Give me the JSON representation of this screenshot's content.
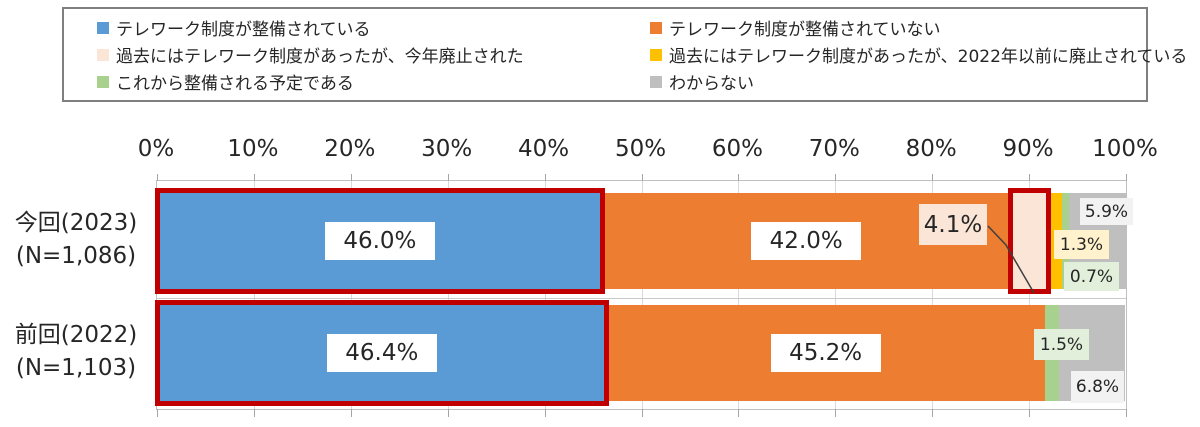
{
  "highlight_color": "#C00000",
  "chart_data": {
    "type": "bar",
    "orientation": "horizontal",
    "stacked": true,
    "legend_position": "top",
    "grid": true,
    "xlim": [
      0,
      100
    ],
    "x_ticks": [
      "0%",
      "10%",
      "20%",
      "30%",
      "40%",
      "50%",
      "60%",
      "70%",
      "80%",
      "90%",
      "100%"
    ],
    "categories": [
      {
        "label": "今回(2023)",
        "n": "(N=1,086)"
      },
      {
        "label": "前回(2022)",
        "n": "(N=1,103)"
      }
    ],
    "series": [
      {
        "name": "テレワーク制度が整備されている",
        "color": "#5B9BD5",
        "label_bg": "#FFFFFF",
        "values": [
          46.0,
          46.4
        ]
      },
      {
        "name": "テレワーク制度が整備されていない",
        "color": "#ED7D31",
        "label_bg": "#FFFFFF",
        "values": [
          42.0,
          45.2
        ]
      },
      {
        "name": "過去にはテレワーク制度があったが、今年廃止された",
        "color": "#FBE5D6",
        "label_bg": "#FBE5D6",
        "values": [
          4.1,
          0
        ]
      },
      {
        "name": "過去にはテレワーク制度があったが、2022年以前に廃止されている",
        "color": "#FFC000",
        "label_bg": "#FFF2CC",
        "values": [
          1.3,
          0
        ]
      },
      {
        "name": "これから整備される予定である",
        "color": "#A9D18E",
        "label_bg": "#E2EFDA",
        "values": [
          0.7,
          1.5
        ]
      },
      {
        "name": "わからない",
        "color": "#BFBFBF",
        "label_bg": "#F2F2F2",
        "values": [
          5.9,
          6.8
        ]
      }
    ],
    "data_labels": [
      "46.0%",
      "42.0%",
      "4.1%",
      "1.3%",
      "0.7%",
      "5.9%",
      "46.4%",
      "45.2%",
      "1.5%",
      "6.8%"
    ],
    "highlighted_segments": [
      {
        "category": 0,
        "series": 0
      },
      {
        "category": 0,
        "series": 2
      },
      {
        "category": 1,
        "series": 0
      }
    ]
  }
}
